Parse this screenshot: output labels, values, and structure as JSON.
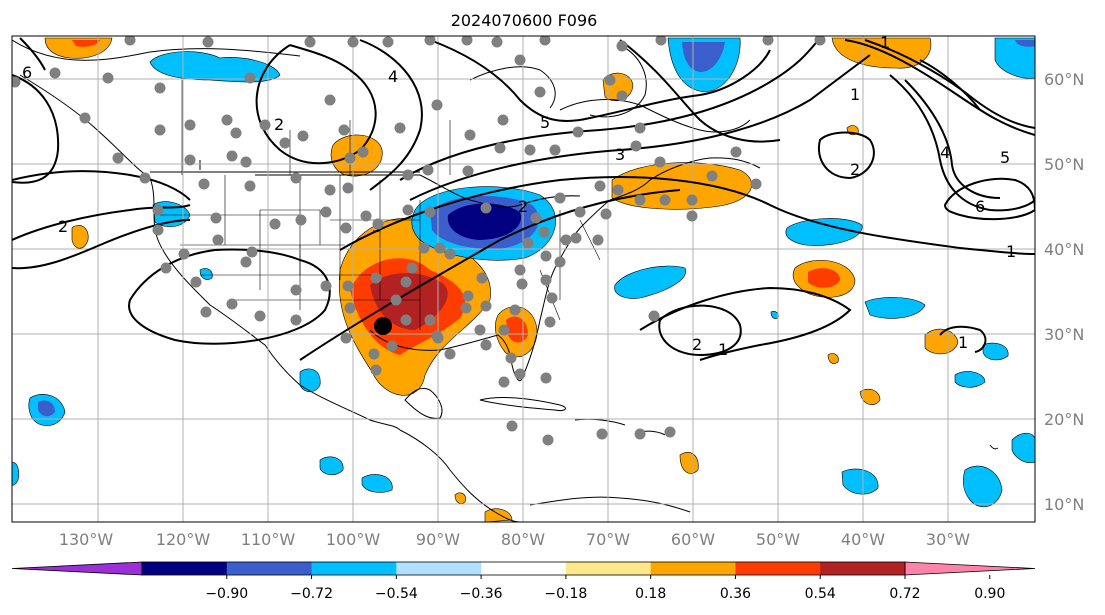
{
  "title": "2024070600 F096",
  "longitude_labels": [
    "130°W",
    "120°W",
    "110°W",
    "100°W",
    "90°W",
    "80°W",
    "70°W",
    "60°W",
    "50°W",
    "40°W",
    "30°W"
  ],
  "latitude_labels": [
    "60°N",
    "50°N",
    "40°N",
    "30°N",
    "20°N",
    "10°N"
  ],
  "contour_labels": [
    "6",
    "5",
    "4",
    "3",
    "2",
    "1",
    "6",
    "5",
    "4",
    "2",
    "1",
    "2",
    "1",
    "3",
    "2",
    "1",
    "2",
    "1"
  ],
  "colorbar": {
    "tick_labels": [
      "−0.90",
      "−0.72",
      "−0.54",
      "−0.36",
      "−0.18",
      "0.18",
      "0.36",
      "0.54",
      "0.72",
      "0.90"
    ],
    "colors": [
      "#9b30d8",
      "#000080",
      "#3a5fcd",
      "#00bfff",
      "#b0e2ff",
      "#ffffff",
      "#ffe88a",
      "#ffa500",
      "#ff3c00",
      "#b22222",
      "#ff82ab"
    ],
    "extend": "both"
  },
  "style": {
    "grid_color": "#b0b0b0",
    "contour_color": "#000000",
    "station_color": "#808080",
    "marker_color": "#000000"
  },
  "icons": [
    "station-dot",
    "location-marker"
  ]
}
